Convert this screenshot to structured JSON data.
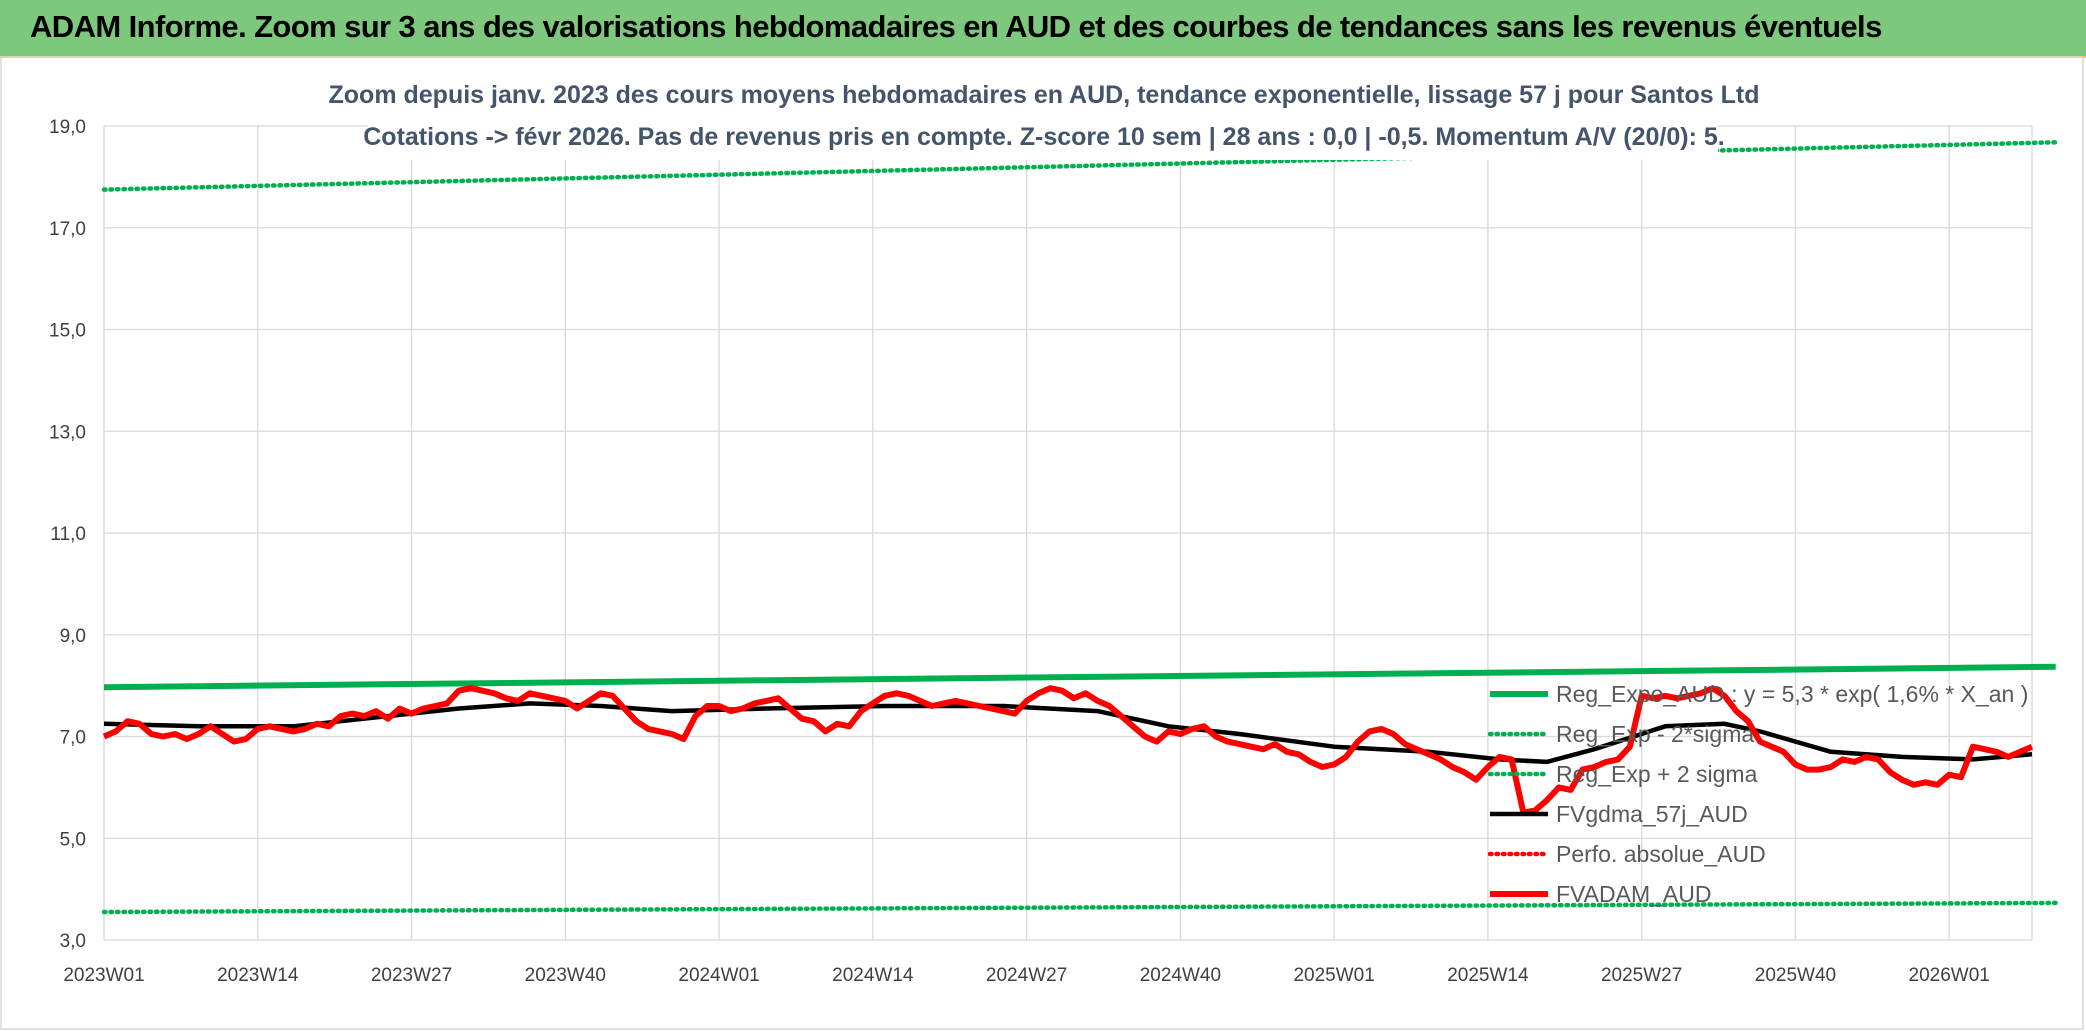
{
  "banner": {
    "title": "ADAM Informe. Zoom sur 3 ans des valorisations hebdomadaires en AUD et des courbes de tendances sans les revenus éventuels"
  },
  "colors": {
    "banner_bg": "#7ec87e",
    "trend": "#00b050",
    "smooth": "#000000",
    "fv": "#ff0000",
    "grid": "#d9d9d9",
    "title_text": "#44546a"
  },
  "chart_data": {
    "type": "line",
    "title": "Zoom depuis janv. 2023 des cours moyens hebdomadaires en AUD, tendance exponentielle, lissage 57 j pour Santos Ltd",
    "subtitle": "Cotations -> févr 2026. Pas de revenus pris en compte. Z-score 10 sem | 28 ans : 0,0 | -0,5. Momentum A/V (20/0): 5.",
    "xlabel": "",
    "ylabel": "",
    "ylim": [
      3,
      19
    ],
    "yticks": [
      "3,0",
      "5,0",
      "7,0",
      "9,0",
      "11,0",
      "13,0",
      "15,0",
      "17,0",
      "19,0"
    ],
    "xlim": [
      0,
      163
    ],
    "xticks": [
      {
        "week": 0,
        "label": "2023W01"
      },
      {
        "week": 13,
        "label": "2023W14"
      },
      {
        "week": 26,
        "label": "2023W27"
      },
      {
        "week": 39,
        "label": "2023W40"
      },
      {
        "week": 52,
        "label": "2024W01"
      },
      {
        "week": 65,
        "label": "2024W14"
      },
      {
        "week": 78,
        "label": "2024W27"
      },
      {
        "week": 91,
        "label": "2024W40"
      },
      {
        "week": 104,
        "label": "2025W01"
      },
      {
        "week": 117,
        "label": "2025W14"
      },
      {
        "week": 130,
        "label": "2025W27"
      },
      {
        "week": 143,
        "label": "2025W40"
      },
      {
        "week": 156,
        "label": "2026W01"
      }
    ],
    "grid": true,
    "legend_position": "bottom-right",
    "series": [
      {
        "name": "Reg_Expo_AUD : y = 5,3 * exp( 1,6% *  X_an )",
        "style": "solid-thick",
        "color": "#00b050",
        "points": [
          [
            0,
            7.97
          ],
          [
            165,
            8.37
          ]
        ]
      },
      {
        "name": "Reg_Exp - 2*sigma",
        "style": "dotted",
        "color": "#00b050",
        "points": [
          [
            0,
            3.55
          ],
          [
            165,
            3.73
          ]
        ]
      },
      {
        "name": "Reg_Exp + 2 sigma",
        "style": "dotted",
        "color": "#00b050",
        "points": [
          [
            0,
            17.75
          ],
          [
            165,
            18.68
          ]
        ]
      },
      {
        "name": "FVgdma_57j_AUD",
        "style": "solid",
        "color": "#000000",
        "points": [
          [
            0,
            7.25
          ],
          [
            8,
            7.2
          ],
          [
            16,
            7.2
          ],
          [
            22,
            7.35
          ],
          [
            30,
            7.55
          ],
          [
            36,
            7.65
          ],
          [
            42,
            7.6
          ],
          [
            48,
            7.5
          ],
          [
            56,
            7.55
          ],
          [
            66,
            7.6
          ],
          [
            76,
            7.6
          ],
          [
            84,
            7.5
          ],
          [
            90,
            7.2
          ],
          [
            96,
            7.05
          ],
          [
            104,
            6.8
          ],
          [
            112,
            6.7
          ],
          [
            118,
            6.55
          ],
          [
            122,
            6.5
          ],
          [
            126,
            6.75
          ],
          [
            132,
            7.2
          ],
          [
            137,
            7.25
          ],
          [
            140,
            7.1
          ],
          [
            146,
            6.7
          ],
          [
            152,
            6.6
          ],
          [
            158,
            6.55
          ],
          [
            163,
            6.65
          ]
        ]
      },
      {
        "name": "Perfo. absolue_AUD",
        "style": "dotted",
        "color": "#ff0000",
        "points": []
      },
      {
        "name": "FVADAM_AUD",
        "style": "solid-thick",
        "color": "#ff0000",
        "points": [
          [
            0,
            7.0
          ],
          [
            1,
            7.1
          ],
          [
            2,
            7.3
          ],
          [
            3,
            7.25
          ],
          [
            4,
            7.05
          ],
          [
            5,
            7.0
          ],
          [
            6,
            7.05
          ],
          [
            7,
            6.95
          ],
          [
            8,
            7.05
          ],
          [
            9,
            7.2
          ],
          [
            10,
            7.05
          ],
          [
            11,
            6.9
          ],
          [
            12,
            6.95
          ],
          [
            13,
            7.15
          ],
          [
            14,
            7.2
          ],
          [
            15,
            7.15
          ],
          [
            16,
            7.1
          ],
          [
            17,
            7.15
          ],
          [
            18,
            7.25
          ],
          [
            19,
            7.2
          ],
          [
            20,
            7.4
          ],
          [
            21,
            7.45
          ],
          [
            22,
            7.4
          ],
          [
            23,
            7.5
          ],
          [
            24,
            7.35
          ],
          [
            25,
            7.55
          ],
          [
            26,
            7.45
          ],
          [
            27,
            7.55
          ],
          [
            28,
            7.6
          ],
          [
            29,
            7.65
          ],
          [
            30,
            7.9
          ],
          [
            31,
            7.95
          ],
          [
            32,
            7.9
          ],
          [
            33,
            7.85
          ],
          [
            34,
            7.75
          ],
          [
            35,
            7.7
          ],
          [
            36,
            7.85
          ],
          [
            37,
            7.8
          ],
          [
            38,
            7.75
          ],
          [
            39,
            7.7
          ],
          [
            40,
            7.55
          ],
          [
            41,
            7.7
          ],
          [
            42,
            7.85
          ],
          [
            43,
            7.8
          ],
          [
            44,
            7.55
          ],
          [
            45,
            7.3
          ],
          [
            46,
            7.15
          ],
          [
            47,
            7.1
          ],
          [
            48,
            7.05
          ],
          [
            49,
            6.95
          ],
          [
            50,
            7.4
          ],
          [
            51,
            7.6
          ],
          [
            52,
            7.6
          ],
          [
            53,
            7.5
          ],
          [
            54,
            7.55
          ],
          [
            55,
            7.65
          ],
          [
            56,
            7.7
          ],
          [
            57,
            7.75
          ],
          [
            58,
            7.55
          ],
          [
            59,
            7.35
          ],
          [
            60,
            7.3
          ],
          [
            61,
            7.1
          ],
          [
            62,
            7.25
          ],
          [
            63,
            7.2
          ],
          [
            64,
            7.5
          ],
          [
            65,
            7.65
          ],
          [
            66,
            7.8
          ],
          [
            67,
            7.85
          ],
          [
            68,
            7.8
          ],
          [
            69,
            7.7
          ],
          [
            70,
            7.6
          ],
          [
            71,
            7.65
          ],
          [
            72,
            7.7
          ],
          [
            73,
            7.65
          ],
          [
            74,
            7.6
          ],
          [
            75,
            7.55
          ],
          [
            76,
            7.5
          ],
          [
            77,
            7.45
          ],
          [
            78,
            7.7
          ],
          [
            79,
            7.85
          ],
          [
            80,
            7.95
          ],
          [
            81,
            7.9
          ],
          [
            82,
            7.75
          ],
          [
            83,
            7.85
          ],
          [
            84,
            7.7
          ],
          [
            85,
            7.6
          ],
          [
            86,
            7.4
          ],
          [
            87,
            7.2
          ],
          [
            88,
            7.0
          ],
          [
            89,
            6.9
          ],
          [
            90,
            7.1
          ],
          [
            91,
            7.05
          ],
          [
            92,
            7.15
          ],
          [
            93,
            7.2
          ],
          [
            94,
            7.0
          ],
          [
            95,
            6.9
          ],
          [
            96,
            6.85
          ],
          [
            97,
            6.8
          ],
          [
            98,
            6.75
          ],
          [
            99,
            6.85
          ],
          [
            100,
            6.7
          ],
          [
            101,
            6.65
          ],
          [
            102,
            6.5
          ],
          [
            103,
            6.4
          ],
          [
            104,
            6.45
          ],
          [
            105,
            6.6
          ],
          [
            106,
            6.9
          ],
          [
            107,
            7.1
          ],
          [
            108,
            7.15
          ],
          [
            109,
            7.05
          ],
          [
            110,
            6.85
          ],
          [
            111,
            6.75
          ],
          [
            112,
            6.65
          ],
          [
            113,
            6.55
          ],
          [
            114,
            6.4
          ],
          [
            115,
            6.3
          ],
          [
            116,
            6.15
          ],
          [
            117,
            6.4
          ],
          [
            118,
            6.6
          ],
          [
            119,
            6.55
          ],
          [
            120,
            5.5
          ],
          [
            121,
            5.55
          ],
          [
            122,
            5.75
          ],
          [
            123,
            6.0
          ],
          [
            124,
            5.95
          ],
          [
            125,
            6.35
          ],
          [
            126,
            6.4
          ],
          [
            127,
            6.5
          ],
          [
            128,
            6.55
          ],
          [
            129,
            6.8
          ],
          [
            130,
            7.8
          ],
          [
            131,
            7.75
          ],
          [
            132,
            7.8
          ],
          [
            133,
            7.75
          ],
          [
            134,
            7.8
          ],
          [
            135,
            7.85
          ],
          [
            136,
            7.95
          ],
          [
            137,
            7.8
          ],
          [
            138,
            7.5
          ],
          [
            139,
            7.3
          ],
          [
            140,
            6.9
          ],
          [
            141,
            6.8
          ],
          [
            142,
            6.7
          ],
          [
            143,
            6.45
          ],
          [
            144,
            6.35
          ],
          [
            145,
            6.35
          ],
          [
            146,
            6.4
          ],
          [
            147,
            6.55
          ],
          [
            148,
            6.5
          ],
          [
            149,
            6.6
          ],
          [
            150,
            6.55
          ],
          [
            151,
            6.3
          ],
          [
            152,
            6.15
          ],
          [
            153,
            6.05
          ],
          [
            154,
            6.1
          ],
          [
            155,
            6.05
          ],
          [
            156,
            6.25
          ],
          [
            157,
            6.2
          ],
          [
            158,
            6.8
          ],
          [
            159,
            6.75
          ],
          [
            160,
            6.7
          ],
          [
            161,
            6.6
          ],
          [
            162,
            6.7
          ],
          [
            163,
            6.8
          ]
        ]
      }
    ]
  }
}
